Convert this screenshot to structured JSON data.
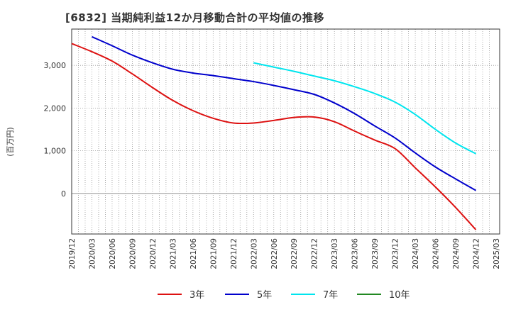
{
  "title": "[6832]  当期純利益12か月移動合計の平均値の推移",
  "chart_data": {
    "type": "line",
    "title": "[6832]  当期純利益12か月移動合計の平均値の推移",
    "ylabel": "(百万円)",
    "xlabel": "",
    "ylim": [
      -950,
      3850
    ],
    "yticks": [
      0,
      1000,
      2000,
      3000
    ],
    "ytick_labels": [
      "0",
      "1,000",
      "2,000",
      "3,000"
    ],
    "x_tick_labels": [
      "2019/12",
      "2020/03",
      "2020/06",
      "2020/09",
      "2020/12",
      "2021/03",
      "2021/06",
      "2021/09",
      "2021/12",
      "2022/03",
      "2022/06",
      "2022/09",
      "2022/12",
      "2023/03",
      "2023/06",
      "2023/09",
      "2023/12",
      "2024/03",
      "2024/06",
      "2024/09",
      "2024/12",
      "2025/03"
    ],
    "grid": true,
    "legend_position": "bottom",
    "series": [
      {
        "name": "3年",
        "color": "#dd1111",
        "x": [
          "2019/12",
          "2020/03",
          "2020/06",
          "2020/09",
          "2020/12",
          "2021/03",
          "2021/06",
          "2021/09",
          "2021/12",
          "2022/03",
          "2022/06",
          "2022/09",
          "2022/12",
          "2023/03",
          "2023/06",
          "2023/09",
          "2023/12",
          "2024/03",
          "2024/06",
          "2024/09",
          "2024/12"
        ],
        "values": [
          3510,
          3320,
          3100,
          2800,
          2480,
          2180,
          1940,
          1760,
          1650,
          1650,
          1710,
          1780,
          1790,
          1680,
          1460,
          1250,
          1050,
          600,
          150,
          -330,
          -850
        ]
      },
      {
        "name": "5年",
        "color": "#0000cc",
        "x": [
          "2020/03",
          "2020/06",
          "2020/09",
          "2020/12",
          "2021/03",
          "2021/06",
          "2021/09",
          "2021/12",
          "2022/03",
          "2022/06",
          "2022/09",
          "2022/12",
          "2023/03",
          "2023/06",
          "2023/09",
          "2023/12",
          "2024/03",
          "2024/06",
          "2024/09",
          "2024/12"
        ],
        "values": [
          3670,
          3460,
          3240,
          3060,
          2910,
          2820,
          2760,
          2690,
          2620,
          2530,
          2430,
          2320,
          2120,
          1870,
          1580,
          1300,
          950,
          620,
          340,
          70
        ]
      },
      {
        "name": "7年",
        "color": "#00e5ee",
        "x": [
          "2022/03",
          "2022/06",
          "2022/09",
          "2022/12",
          "2023/03",
          "2023/06",
          "2023/09",
          "2023/12",
          "2024/03",
          "2024/06",
          "2024/09",
          "2024/12"
        ],
        "values": [
          3060,
          2960,
          2860,
          2750,
          2640,
          2500,
          2340,
          2140,
          1850,
          1500,
          1180,
          930
        ]
      },
      {
        "name": "10年",
        "color": "#228822",
        "x": [],
        "values": []
      }
    ]
  }
}
